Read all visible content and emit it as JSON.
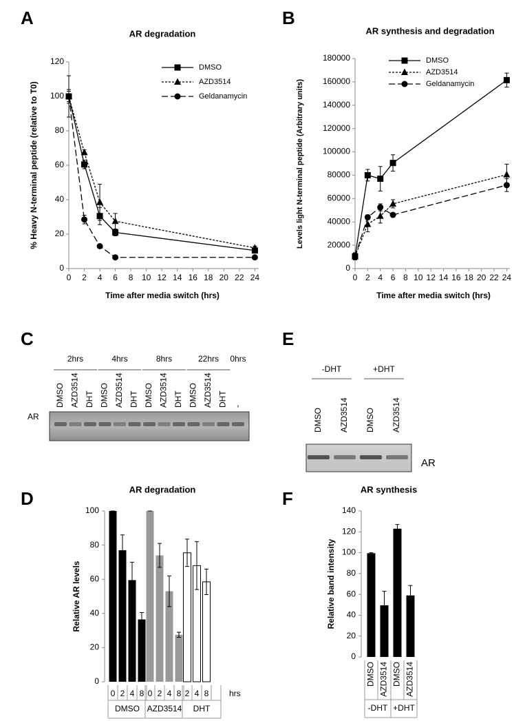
{
  "chart_data": [
    {
      "type": "line",
      "panel": "A",
      "title": "AR degradation",
      "x_label": "Time after media switch (hrs)",
      "y_label": "% Heavy N-terminal peptide (relative to T0)",
      "x": [
        0,
        2,
        4,
        6,
        24
      ],
      "xlim": [
        0,
        24.5
      ],
      "xticks": [
        0,
        2,
        4,
        6,
        8,
        10,
        12,
        14,
        16,
        18,
        20,
        22,
        24
      ],
      "ylim": [
        0,
        120
      ],
      "yticks": [
        0,
        20,
        40,
        60,
        80,
        100,
        120
      ],
      "series": [
        {
          "name": "DMSO",
          "color": "#000000",
          "marker": "square",
          "line_style": "solid",
          "values": [
            100,
            60.5,
            30.5,
            21,
            10.5
          ],
          "errors": [
            4,
            2.5,
            5,
            2,
            1.5
          ]
        },
        {
          "name": "AZD3514",
          "color": "#000000",
          "marker": "triangle",
          "line_style": "dotted",
          "values": [
            100,
            67.5,
            38.5,
            27.5,
            12
          ],
          "errors": [
            12,
            1.5,
            10.5,
            4.5,
            1
          ]
        },
        {
          "name": "Geldanamycin",
          "color": "#000000",
          "marker": "circle",
          "line_style": "dashed",
          "values": [
            100,
            28.5,
            13,
            6.5,
            6.5
          ],
          "errors": [
            3,
            2.5,
            0.5,
            0.5,
            1
          ]
        }
      ]
    },
    {
      "type": "line",
      "panel": "B",
      "title": "AR synthesis and degradation",
      "x_label": "Time after media switch (hrs)",
      "y_label": "Levels light N-terminal peptide (Arbitrary units)",
      "x": [
        0,
        2,
        4,
        6,
        24
      ],
      "xlim": [
        0,
        24.5
      ],
      "xticks": [
        0,
        2,
        4,
        6,
        8,
        10,
        12,
        14,
        16,
        18,
        20,
        22,
        24
      ],
      "ylim": [
        0,
        180000
      ],
      "yticks": [
        0,
        20000,
        40000,
        60000,
        80000,
        100000,
        120000,
        140000,
        160000,
        180000
      ],
      "series": [
        {
          "name": "DMSO",
          "color": "#000000",
          "marker": "square",
          "line_style": "solid",
          "values": [
            10500,
            80000,
            77000,
            90500,
            161500
          ],
          "errors": [
            3000,
            5000,
            10500,
            7000,
            6000
          ]
        },
        {
          "name": "AZD3514",
          "color": "#000000",
          "marker": "triangle",
          "line_style": "dotted",
          "values": [
            10500,
            38000,
            45000,
            55500,
            80500
          ],
          "errors": [
            3000,
            6500,
            6000,
            3500,
            9000
          ]
        },
        {
          "name": "Geldanamycin",
          "color": "#000000",
          "marker": "circle",
          "line_style": "dashed",
          "values": [
            10500,
            44000,
            52500,
            46000,
            71500
          ],
          "errors": [
            3000,
            2000,
            3000,
            1500,
            5500
          ]
        }
      ]
    },
    {
      "type": "bar",
      "panel": "D",
      "title": "AR degradation",
      "y_label": "Relative AR levels",
      "x_unit": "hrs",
      "ylim": [
        0,
        100
      ],
      "yticks": [
        0,
        20,
        40,
        60,
        80,
        100
      ],
      "groups": [
        {
          "name": "DMSO",
          "color": "#000000",
          "categories": [
            "0",
            "2",
            "4",
            "8"
          ],
          "values": [
            100,
            77,
            59.5,
            36.5
          ],
          "errors": [
            0,
            9,
            10.5,
            4
          ]
        },
        {
          "name": "AZD3514",
          "color": "#999999",
          "categories": [
            "0",
            "2",
            "4",
            "8"
          ],
          "values": [
            100,
            74,
            53,
            27.5
          ],
          "errors": [
            0,
            7,
            9,
            1.5
          ]
        },
        {
          "name": "DHT",
          "color": "#ffffff",
          "categories": [
            "2",
            "4",
            "8"
          ],
          "values": [
            75.5,
            68,
            58.5
          ],
          "errors": [
            8,
            14,
            7.5
          ]
        }
      ]
    },
    {
      "type": "bar",
      "panel": "F",
      "title": "AR synthesis",
      "y_label": "Relative band intensity",
      "ylim": [
        0,
        140
      ],
      "yticks": [
        0,
        20,
        40,
        60,
        80,
        100,
        120,
        140
      ],
      "groups": [
        {
          "name": "-DHT",
          "color": "#000000",
          "categories": [
            "DMSO",
            "AZD3514"
          ],
          "values": [
            99.5,
            49.5
          ],
          "errors": [
            0.5,
            13.5
          ]
        },
        {
          "name": "+DHT",
          "color": "#000000",
          "categories": [
            "DMSO",
            "AZD3514"
          ],
          "values": [
            123,
            59
          ],
          "errors": [
            4,
            9.5
          ]
        }
      ]
    }
  ],
  "blots": [
    {
      "panel": "C",
      "band": "AR",
      "groups": [
        {
          "label": "2hrs",
          "lanes": [
            "DMSO",
            "AZD3514",
            "DHT"
          ]
        },
        {
          "label": "4hrs",
          "lanes": [
            "DMSO",
            "AZD3514",
            "DHT"
          ]
        },
        {
          "label": "8hrs",
          "lanes": [
            "DMSO",
            "AZD3514",
            "DHT"
          ]
        },
        {
          "label": "22hrs",
          "lanes": [
            "DMSO",
            "AZD3514",
            "DHT"
          ]
        },
        {
          "label": "0hrs",
          "lanes": [
            "-"
          ]
        }
      ]
    },
    {
      "panel": "E",
      "band": "AR",
      "groups": [
        {
          "label": "-DHT",
          "lanes": [
            "DMSO",
            "AZD3514"
          ]
        },
        {
          "label": "+DHT",
          "lanes": [
            "DMSO",
            "AZD3514"
          ]
        }
      ]
    }
  ]
}
